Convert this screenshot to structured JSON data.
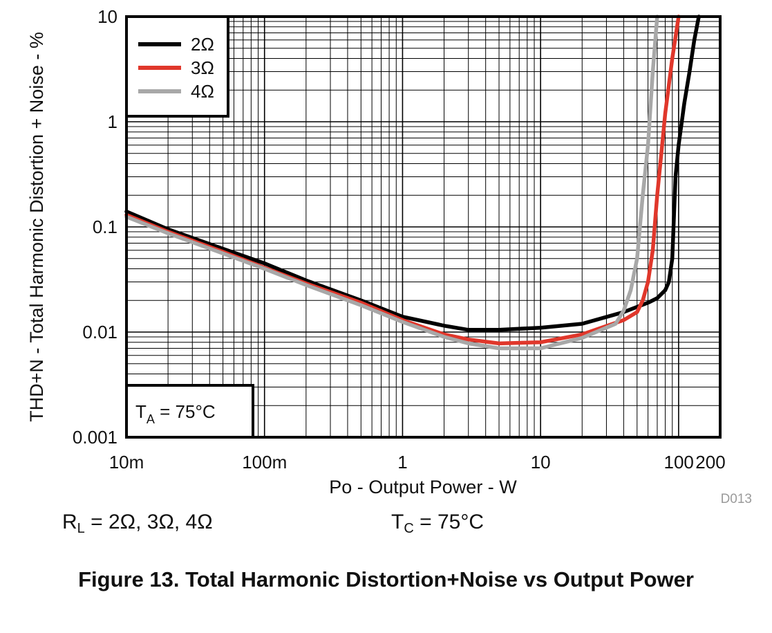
{
  "chart_data": {
    "type": "line",
    "xlabel": "Po - Output Power - W",
    "ylabel": "THD+N - Total Harmonic Distortion + Noise - %",
    "xscale": "log",
    "yscale": "log",
    "xlim": [
      0.01,
      200
    ],
    "ylim": [
      0.001,
      10
    ],
    "grid": true,
    "legend_position": "top-left",
    "x_ticks": [
      {
        "value": 0.01,
        "label": "10m"
      },
      {
        "value": 0.1,
        "label": "100m"
      },
      {
        "value": 1,
        "label": "1"
      },
      {
        "value": 10,
        "label": "10"
      },
      {
        "value": 100,
        "label": "100"
      },
      {
        "value": 200,
        "label": "200"
      }
    ],
    "y_ticks": [
      {
        "value": 10,
        "label": "10"
      },
      {
        "value": 1,
        "label": "1"
      },
      {
        "value": 0.1,
        "label": "0.1"
      },
      {
        "value": 0.01,
        "label": "0.01"
      },
      {
        "value": 0.001,
        "label": "0.001"
      }
    ],
    "series": [
      {
        "name": "2Ω",
        "color": "#000000",
        "x": [
          0.01,
          0.02,
          0.05,
          0.1,
          0.2,
          0.5,
          1,
          2,
          3,
          5,
          10,
          20,
          40,
          60,
          70,
          80,
          85,
          90,
          95,
          100,
          110,
          120,
          130,
          140
        ],
        "y": [
          0.14,
          0.095,
          0.062,
          0.045,
          0.031,
          0.02,
          0.014,
          0.0115,
          0.0105,
          0.0105,
          0.011,
          0.012,
          0.0155,
          0.019,
          0.021,
          0.025,
          0.03,
          0.05,
          0.3,
          0.6,
          1.5,
          3,
          6,
          10
        ]
      },
      {
        "name": "3Ω",
        "color": "#e0372b",
        "x": [
          0.01,
          0.02,
          0.05,
          0.1,
          0.2,
          0.5,
          1,
          2,
          3,
          5,
          10,
          20,
          40,
          50,
          55,
          60,
          65,
          70,
          75,
          80,
          90,
          100
        ],
        "y": [
          0.13,
          0.09,
          0.058,
          0.041,
          0.029,
          0.019,
          0.013,
          0.0095,
          0.0085,
          0.0078,
          0.008,
          0.0095,
          0.013,
          0.0155,
          0.02,
          0.03,
          0.06,
          0.2,
          0.5,
          1.2,
          4,
          10
        ]
      },
      {
        "name": "4Ω",
        "color": "#a8a8a8",
        "x": [
          0.01,
          0.02,
          0.05,
          0.1,
          0.2,
          0.5,
          1,
          2,
          3,
          5,
          10,
          20,
          35,
          40,
          45,
          50,
          55,
          60,
          65,
          70
        ],
        "y": [
          0.125,
          0.087,
          0.056,
          0.04,
          0.028,
          0.018,
          0.0125,
          0.009,
          0.0078,
          0.007,
          0.007,
          0.0088,
          0.012,
          0.016,
          0.025,
          0.05,
          0.2,
          0.6,
          3,
          10
        ]
      }
    ]
  },
  "annotations": {
    "ta_label": "T",
    "ta_sub": "A",
    "ta_value": " = 75°C",
    "code": "D013"
  },
  "conditions": {
    "rl_label": "R",
    "rl_sub": "L",
    "rl_value": " = 2Ω, 3Ω, 4Ω",
    "tc_label": "T",
    "tc_sub": "C",
    "tc_value": " = 75°C"
  },
  "figure": {
    "caption": "Figure 13. Total Harmonic Distortion+Noise vs Output Power"
  }
}
